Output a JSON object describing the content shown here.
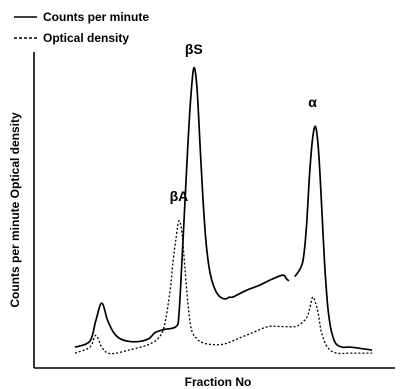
{
  "chart_data": {
    "type": "line",
    "title": "",
    "xlabel": "Fraction No",
    "ylabel": "Counts per minute Optical density",
    "axis_ticks": false,
    "grid": false,
    "legend_position": "top-left",
    "x_range": [
      0,
      100
    ],
    "y_range": [
      0,
      100
    ],
    "series": [
      {
        "name": "Counts per minute",
        "style": "solid",
        "color": "#000000",
        "x": [
          0,
          5,
          7,
          9,
          11,
          13,
          15,
          18,
          22,
          25,
          27,
          30,
          34,
          35,
          36,
          37,
          38,
          39,
          40,
          41,
          42,
          43,
          44,
          45,
          46,
          47,
          48,
          49,
          50,
          51,
          52,
          53,
          55,
          58,
          62,
          66,
          70,
          71,
          72
        ],
        "values": [
          3,
          5,
          12,
          18,
          12,
          8,
          6,
          5,
          5,
          6,
          8,
          9,
          10,
          14,
          32,
          52,
          72,
          88,
          98,
          92,
          74,
          55,
          40,
          31,
          26,
          23,
          21,
          20,
          19.5,
          19.5,
          20,
          20,
          21,
          22.5,
          24,
          26,
          27.5,
          26.5,
          25.5
        ]
      },
      {
        "name": "Counts per minute",
        "style": "solid",
        "color": "#000000",
        "x": [
          74,
          76,
          77,
          78,
          79,
          80,
          81,
          82,
          83,
          84,
          85,
          86,
          87,
          88,
          90,
          93,
          100
        ],
        "values": [
          27,
          30,
          34,
          45,
          62,
          74,
          78,
          70,
          52,
          32,
          18,
          10,
          6,
          4,
          3,
          3,
          2
        ]
      },
      {
        "name": "Optical density",
        "style": "dashed",
        "color": "#000000",
        "x": [
          0,
          5,
          7,
          9,
          11,
          14,
          18,
          22,
          25,
          28,
          30,
          32,
          33,
          34,
          35,
          36,
          37,
          38,
          39,
          40,
          41,
          42,
          45,
          50,
          55,
          60,
          65,
          70,
          74,
          76,
          78,
          79,
          80,
          81,
          82,
          83,
          85,
          88,
          93,
          100
        ],
        "values": [
          1,
          3,
          7,
          3,
          1,
          1,
          2,
          3,
          4,
          6,
          10,
          22,
          32,
          40,
          46,
          42,
          30,
          18,
          10,
          7,
          6,
          5,
          4,
          4,
          6,
          8,
          10,
          10,
          10,
          11,
          13,
          16,
          20,
          18,
          14,
          8,
          3,
          1,
          1,
          1
        ]
      }
    ],
    "annotations": [
      {
        "text": "βA",
        "x": 35,
        "y": 50
      },
      {
        "text": "βS",
        "x": 40,
        "y": 100
      },
      {
        "text": "α",
        "x": 80,
        "y": 82
      }
    ]
  }
}
